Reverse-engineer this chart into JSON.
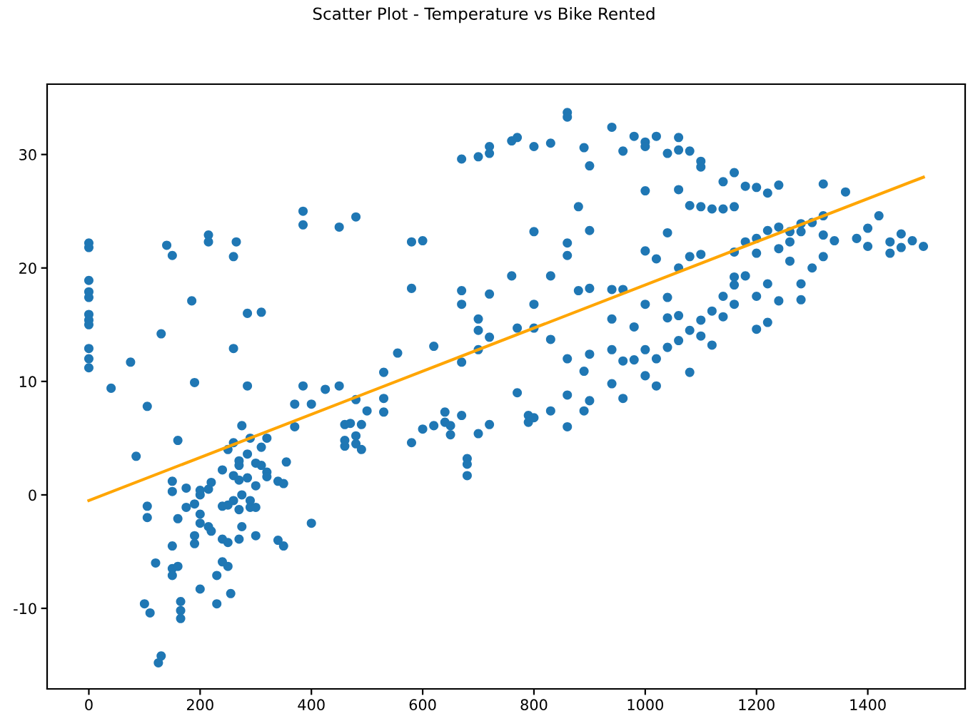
{
  "chart_data": {
    "type": "scatter",
    "title": "Scatter Plot - Temperature vs Bike Rented",
    "xlim": [
      -75,
      1575
    ],
    "ylim": [
      -17.1,
      36.2
    ],
    "xticks": [
      0,
      200,
      400,
      600,
      800,
      1000,
      1200,
      1400
    ],
    "yticks": [
      -10,
      0,
      10,
      20,
      30
    ],
    "grid": false,
    "marker": "circle",
    "series": [
      {
        "color": "#1f77b4",
        "x": [
          0,
          0,
          0,
          0,
          0,
          0,
          0,
          0,
          0,
          0,
          0,
          40,
          75,
          85,
          105,
          105,
          105,
          100,
          110,
          120,
          125,
          130,
          130,
          140,
          150,
          150,
          150,
          150,
          150,
          150,
          160,
          160,
          160,
          165,
          165,
          165,
          175,
          175,
          185,
          190,
          190,
          190,
          190,
          200,
          200,
          200,
          200,
          200,
          215,
          215,
          215,
          215,
          220,
          220,
          230,
          230,
          240,
          240,
          240,
          240,
          250,
          250,
          250,
          250,
          255,
          260,
          260,
          260,
          260,
          260,
          265,
          270,
          270,
          270,
          270,
          270,
          275,
          275,
          275,
          285,
          285,
          285,
          285,
          290,
          290,
          290,
          300,
          300,
          300,
          300,
          310,
          310,
          310,
          320,
          320,
          320,
          340,
          340,
          350,
          350,
          355,
          370,
          370,
          385,
          385,
          385,
          400,
          400,
          425,
          450,
          450,
          480,
          460,
          460,
          460,
          470,
          480,
          480,
          480,
          490,
          490,
          500,
          530,
          530,
          530,
          555,
          580,
          580,
          580,
          600,
          600,
          620,
          620,
          640,
          640,
          650,
          650,
          670,
          670,
          670,
          670,
          670,
          680,
          680,
          680,
          700,
          700,
          700,
          700,
          700,
          720,
          720,
          720,
          720,
          720,
          760,
          760,
          770,
          770,
          770,
          790,
          790,
          800,
          800,
          800,
          800,
          800,
          830,
          830,
          830,
          830,
          860,
          860,
          860,
          860,
          860,
          860,
          860,
          880,
          880,
          890,
          890,
          890,
          900,
          900,
          900,
          900,
          900,
          940,
          940,
          940,
          940,
          940,
          960,
          960,
          960,
          960,
          980,
          980,
          980,
          1000,
          1000,
          1000,
          1000,
          1000,
          1000,
          1000,
          1020,
          1020,
          1020,
          1020,
          1040,
          1040,
          1040,
          1040,
          1040,
          1060,
          1060,
          1060,
          1060,
          1060,
          1060,
          1080,
          1080,
          1080,
          1080,
          1080,
          1100,
          1100,
          1100,
          1100,
          1100,
          1100,
          1120,
          1120,
          1120,
          1140,
          1140,
          1140,
          1140,
          1160,
          1160,
          1160,
          1160,
          1160,
          1160,
          1180,
          1180,
          1180,
          1200,
          1200,
          1200,
          1200,
          1200,
          1220,
          1220,
          1220,
          1220,
          1240,
          1240,
          1240,
          1240,
          1260,
          1260,
          1260,
          1280,
          1280,
          1280,
          1280,
          1300,
          1300,
          1320,
          1320,
          1320,
          1320,
          1340,
          1360,
          1380,
          1400,
          1400,
          1420,
          1440,
          1440,
          1460,
          1460,
          1480,
          1500
        ],
        "values": [
          22.2,
          21.8,
          18.9,
          17.9,
          17.4,
          15.9,
          15.4,
          15,
          12.9,
          12,
          11.2,
          9.4,
          11.7,
          3.4,
          7.8,
          -1,
          -2,
          -9.6,
          -10.4,
          -6,
          -14.8,
          -14.2,
          14.2,
          22,
          21.1,
          0.3,
          1.2,
          -4.5,
          -6.5,
          -7.1,
          4.8,
          -2.1,
          -6.3,
          -9.4,
          -10.2,
          -10.9,
          -1.1,
          0.6,
          17.1,
          9.9,
          -0.8,
          -3.6,
          -4.3,
          0,
          0.4,
          -1.7,
          -2.5,
          -8.3,
          22.9,
          22.3,
          0.5,
          -2.8,
          1.1,
          -3.2,
          -7.1,
          -9.6,
          2.2,
          -1,
          -3.9,
          -5.9,
          4,
          -0.9,
          -4.2,
          -6.3,
          -8.7,
          21,
          12.9,
          4.6,
          1.7,
          -0.5,
          22.3,
          3,
          2.6,
          1.3,
          -1.3,
          -3.9,
          6.1,
          0,
          -2.8,
          16,
          9.6,
          3.6,
          1.5,
          5,
          -0.5,
          -1.1,
          2.8,
          0.8,
          -1.1,
          -3.6,
          16.1,
          2.6,
          4.2,
          2,
          1.6,
          5,
          -4,
          1.2,
          -4.5,
          1,
          2.9,
          6,
          8,
          25,
          23.8,
          9.6,
          8,
          -2.5,
          9.3,
          23.6,
          9.6,
          24.5,
          6.2,
          4.3,
          4.8,
          6.3,
          5.2,
          4.5,
          8.4,
          4,
          6.2,
          7.4,
          8.5,
          7.3,
          10.8,
          12.5,
          4.6,
          18.2,
          22.3,
          22.4,
          5.8,
          13.1,
          6.1,
          6.4,
          7.3,
          5.3,
          6.1,
          29.6,
          16.8,
          18,
          11.7,
          7,
          3.2,
          2.7,
          1.7,
          29.8,
          15.5,
          12.8,
          14.5,
          5.4,
          30.7,
          30.1,
          17.7,
          13.9,
          6.2,
          31.2,
          19.3,
          31.5,
          9,
          14.7,
          7,
          6.4,
          30.7,
          23.2,
          16.8,
          14.7,
          6.8,
          31,
          19.3,
          13.7,
          7.4,
          33.7,
          33.3,
          22.2,
          21.1,
          12,
          8.8,
          6,
          18,
          25.4,
          30.6,
          10.9,
          7.4,
          29,
          23.3,
          18.2,
          12.4,
          8.3,
          32.4,
          18.1,
          15.5,
          12.8,
          9.8,
          30.3,
          18.1,
          11.8,
          8.5,
          31.6,
          14.8,
          11.9,
          31.1,
          30.7,
          26.8,
          21.5,
          16.8,
          12.8,
          10.5,
          31.6,
          20.8,
          12,
          9.6,
          30.1,
          23.1,
          17.4,
          15.6,
          13,
          31.5,
          30.4,
          26.9,
          20,
          15.8,
          13.6,
          30.3,
          25.5,
          21,
          14.5,
          10.8,
          29.4,
          28.9,
          25.4,
          21.2,
          15.4,
          14,
          25.2,
          16.2,
          13.2,
          27.6,
          25.2,
          17.5,
          15.7,
          28.4,
          25.4,
          21.4,
          19.2,
          18.5,
          16.8,
          27.2,
          22.3,
          19.3,
          27.1,
          22.6,
          21.3,
          17.5,
          14.6,
          26.6,
          23.3,
          18.6,
          15.2,
          27.3,
          23.6,
          21.7,
          17.1,
          23.2,
          22.3,
          20.6,
          23.9,
          23.2,
          18.6,
          17.2,
          24,
          20,
          27.4,
          24.6,
          22.9,
          21,
          22.4,
          26.7,
          22.6,
          23.5,
          21.9,
          24.6,
          22.3,
          21.3,
          23,
          21.8,
          22.4,
          21.9
        ]
      },
      {
        "type": "line",
        "color": "#ffa500",
        "x": [
          0,
          1500
        ],
        "values": [
          -0.5,
          28.0
        ],
        "marker": "none",
        "line_style": "solid"
      }
    ]
  }
}
